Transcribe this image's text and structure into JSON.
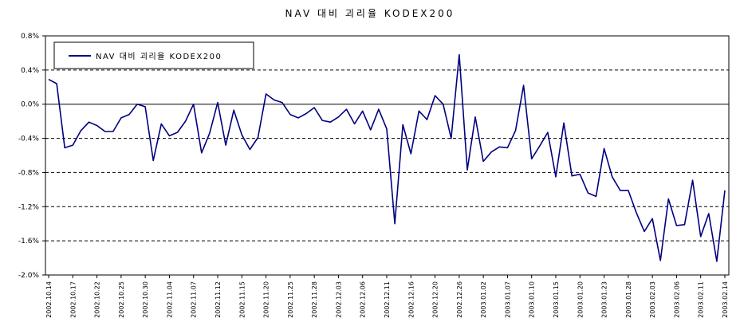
{
  "chart_data": {
    "type": "line",
    "title": "NAV 대비 괴리율 KODEX200",
    "xlabel": "",
    "ylabel": "",
    "ylim": [
      -2.0,
      0.8
    ],
    "yticks": [
      "0.8%",
      "0.4%",
      "0.0%",
      "-0.4%",
      "-0.8%",
      "-1.2%",
      "-1.6%",
      "-2.0%"
    ],
    "ytick_values": [
      0.8,
      0.4,
      0.0,
      -0.4,
      -0.8,
      -1.2,
      -1.6,
      -2.0
    ],
    "grid": "horizontal dashed",
    "legend": "top-left",
    "line_color": "#000080",
    "xtick_labels": [
      "2002.10.14",
      "2002.10.17",
      "2002.10.22",
      "2002.10.25",
      "2002.10.30",
      "2002.11.04",
      "2002.11.07",
      "2002.11.12",
      "2002.11.15",
      "2002.11.20",
      "2002.11.25",
      "2002.11.28",
      "2002.12.03",
      "2002.12.06",
      "2002.12.11",
      "2002.12.16",
      "2002.12.20",
      "2002.12.26",
      "2003.01.02",
      "2003.01.07",
      "2003.01.10",
      "2003.01.15",
      "2003.01.20",
      "2003.01.23",
      "2003.01.28",
      "2003.02.03",
      "2003.02.06",
      "2003.02.11",
      "2003.02.14"
    ],
    "series": [
      {
        "name": "NAV 대비 괴리율 KODEX200",
        "values": [
          0.29,
          0.24,
          -0.51,
          -0.48,
          -0.31,
          -0.21,
          -0.25,
          -0.32,
          -0.32,
          -0.16,
          -0.12,
          0.0,
          -0.03,
          -0.66,
          -0.23,
          -0.37,
          -0.33,
          -0.2,
          0.0,
          -0.57,
          -0.34,
          0.02,
          -0.48,
          -0.07,
          -0.36,
          -0.53,
          -0.39,
          0.12,
          0.05,
          0.02,
          -0.12,
          -0.16,
          -0.11,
          -0.04,
          -0.19,
          -0.21,
          -0.15,
          -0.06,
          -0.23,
          -0.08,
          -0.3,
          -0.06,
          -0.29,
          -1.4,
          -0.24,
          -0.58,
          -0.08,
          -0.18,
          0.1,
          0.0,
          -0.4,
          0.58,
          -0.77,
          -0.15,
          -0.67,
          -0.56,
          -0.5,
          -0.51,
          -0.31,
          0.22,
          -0.64,
          -0.49,
          -0.33,
          -0.85,
          -0.22,
          -0.84,
          -0.82,
          -1.04,
          -1.08,
          -0.52,
          -0.85,
          -1.01,
          -1.01,
          -1.27,
          -1.49,
          -1.34,
          -1.83,
          -1.11,
          -1.42,
          -1.41,
          -0.89,
          -1.55,
          -1.28,
          -1.84,
          -1.01
        ]
      }
    ]
  }
}
